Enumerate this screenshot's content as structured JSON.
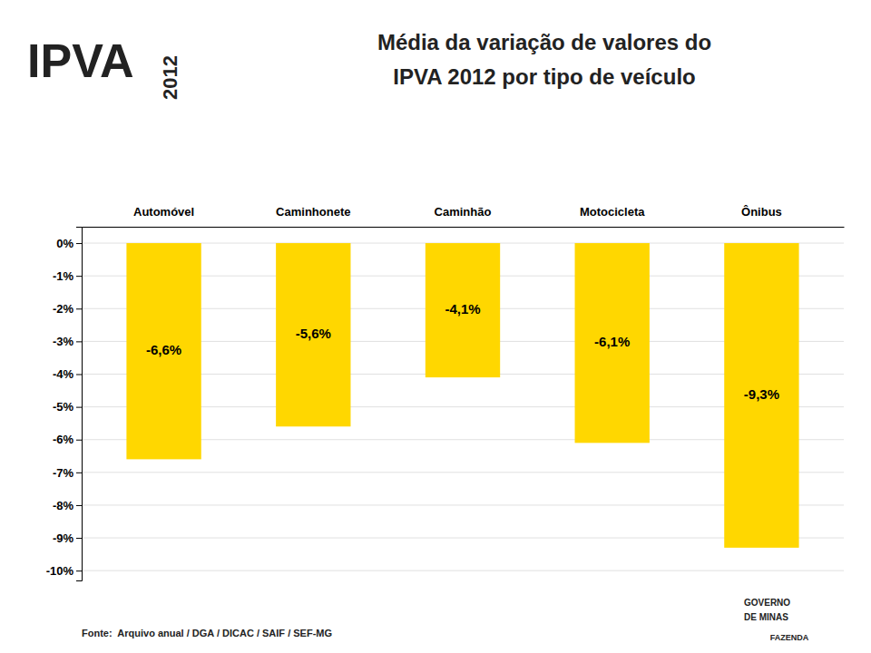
{
  "chart_data": {
    "type": "bar",
    "title": [
      "Média da variação de valores do",
      "IPVA 2012 por tipo de veículo"
    ],
    "annotations": [
      "IPVA",
      "2012",
      "Fonte:  Arquivo anual / DGA / DICAC / SAIF / SEF-MG",
      "GOVERNO",
      "DE MINAS",
      "FAZENDA"
    ],
    "categories": [
      "Automóvel",
      "Caminhonete",
      "Caminhão",
      "Motocicleta",
      "Ônibus"
    ],
    "values": [
      -6.6,
      -5.6,
      -4.1,
      -6.1,
      -9.3
    ],
    "value_labels": [
      "-6,6%",
      "-5,6%",
      "-4,1%",
      "-6,1%",
      "-9,3%"
    ],
    "data_labels": true,
    "color": "#FFD700",
    "ylim": [
      -10.3,
      0.5
    ],
    "yticks": [
      {
        "value": 0,
        "label": "0%"
      },
      {
        "value": -1,
        "label": "-1%"
      },
      {
        "value": -2,
        "label": "-2%"
      },
      {
        "value": -3,
        "label": "-3%"
      },
      {
        "value": -4,
        "label": "-4%"
      },
      {
        "value": -5,
        "label": "-5%"
      },
      {
        "value": -6,
        "label": "-6%"
      },
      {
        "value": -7,
        "label": "-7%"
      },
      {
        "value": -8,
        "label": "-8%"
      },
      {
        "value": -9,
        "label": "-9%"
      },
      {
        "value": -10,
        "label": "-10%"
      }
    ],
    "grid": true
  }
}
